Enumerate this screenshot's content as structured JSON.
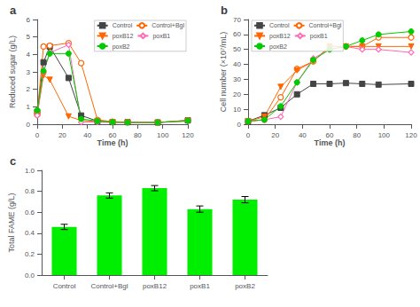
{
  "chart_data": [
    {
      "type": "line",
      "title": "a",
      "xlabel": "Time (h)",
      "ylabel": "Reduced sugar (g/L)",
      "xlim": [
        0,
        120
      ],
      "xticks": [
        0,
        20,
        40,
        60,
        80,
        100,
        120
      ],
      "ylim": [
        0,
        6
      ],
      "yticks": [
        0,
        1,
        2,
        3,
        4,
        5,
        6
      ],
      "x": [
        0,
        5,
        10,
        25,
        35,
        48,
        60,
        72,
        96,
        120
      ],
      "series": [
        {
          "name": "Control",
          "color": "#444444",
          "marker": "square",
          "values": [
            0.7,
            3.55,
            4.45,
            2.65,
            0.5,
            0.18,
            0.12,
            0.12,
            0.1,
            0.22
          ]
        },
        {
          "name": "Control+Bgl",
          "color": "#ff6600",
          "marker": "circle-open",
          "values": [
            0.55,
            4.45,
            4.5,
            4.65,
            3.5,
            0.25,
            0.15,
            0.12,
            0.1,
            0.22
          ]
        },
        {
          "name": "poxB12",
          "color": "#ff6600",
          "marker": "triangle-down",
          "values": [
            0.55,
            2.8,
            2.55,
            0.45,
            0.22,
            0.15,
            0.12,
            0.1,
            0.1,
            0.18
          ]
        },
        {
          "name": "poxB1",
          "color": "#ff69b4",
          "marker": "diamond-open",
          "values": [
            0.5,
            3.0,
            4.1,
            4.55,
            0.12,
            0.12,
            0.1,
            0.1,
            0.1,
            0.18
          ]
        },
        {
          "name": "poxB2",
          "color": "#00cc00",
          "marker": "circle",
          "values": [
            0.8,
            3.05,
            4.05,
            4.05,
            0.3,
            0.18,
            0.12,
            0.1,
            0.1,
            0.2
          ]
        }
      ],
      "legend": "upper right",
      "grid": false
    },
    {
      "type": "line",
      "title": "b",
      "xlabel": "Time (h)",
      "ylabel": "Cell number (×10⁷/mL)",
      "xlim": [
        0,
        120
      ],
      "xticks": [
        0,
        20,
        40,
        60,
        80,
        100,
        120
      ],
      "ylim": [
        0,
        70
      ],
      "yticks": [
        0,
        10,
        20,
        30,
        40,
        50,
        60,
        70
      ],
      "x": [
        0,
        12,
        24,
        36,
        48,
        60,
        72,
        84,
        96,
        120
      ],
      "series": [
        {
          "name": "Control",
          "color": "#444444",
          "marker": "square",
          "values": [
            2,
            6,
            11,
            20,
            27,
            27,
            27.5,
            27,
            26.5,
            27
          ]
        },
        {
          "name": "Control+Bgl",
          "color": "#ff6600",
          "marker": "circle-open",
          "values": [
            2,
            3,
            18,
            37,
            42,
            52,
            52,
            52,
            58,
            58
          ]
        },
        {
          "name": "poxB12",
          "color": "#ff6600",
          "marker": "triangle-down",
          "values": [
            2,
            5,
            25,
            36,
            42,
            52,
            52,
            52,
            52,
            52
          ]
        },
        {
          "name": "poxB1",
          "color": "#ff69b4",
          "marker": "diamond-open",
          "values": [
            2,
            3,
            5,
            28,
            44,
            50,
            52,
            50,
            50,
            48
          ]
        },
        {
          "name": "poxB2",
          "color": "#00cc00",
          "marker": "circle",
          "values": [
            2,
            3,
            12,
            28,
            43,
            50,
            52,
            56,
            60,
            62
          ]
        }
      ],
      "legend": "upper left",
      "grid": false
    },
    {
      "type": "bar",
      "title": "c",
      "ylabel": "Total FAME (g/L)",
      "categories": [
        "Control",
        "Control+Bgl",
        "poxB12",
        "poxB1",
        "poxB2"
      ],
      "values": [
        0.46,
        0.76,
        0.83,
        0.63,
        0.72
      ],
      "errors": [
        0.025,
        0.025,
        0.025,
        0.03,
        0.03
      ],
      "color": "#00ee00",
      "ylim": [
        0,
        1.0
      ],
      "yticks": [
        {
          "value": 0,
          "label": "0.0"
        },
        0.2,
        0.4,
        0.6,
        0.8,
        {
          "value": 1.0,
          "label": "1.0"
        }
      ],
      "grid": false
    }
  ]
}
